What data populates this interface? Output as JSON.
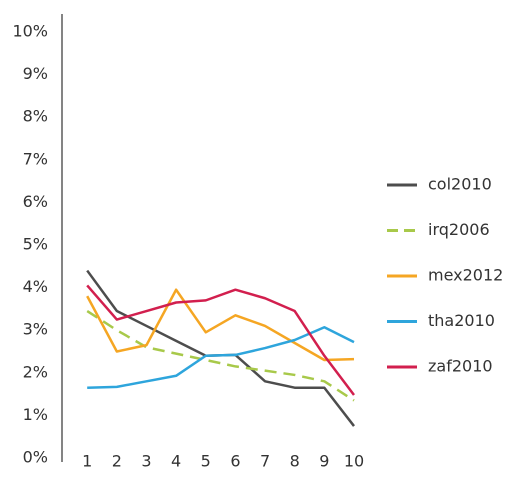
{
  "chart_data": {
    "type": "line",
    "x": [
      1,
      2,
      3,
      4,
      5,
      6,
      7,
      8,
      9,
      10
    ],
    "xlim": [
      0.15,
      10
    ],
    "xticks": [
      1,
      2,
      3,
      4,
      5,
      6,
      7,
      8,
      9,
      10
    ],
    "ylim": [
      0,
      10
    ],
    "yticks": [
      {
        "value": 0,
        "label": "0%"
      },
      {
        "value": 1,
        "label": "1%"
      },
      {
        "value": 2,
        "label": "2%"
      },
      {
        "value": 3,
        "label": "3%"
      },
      {
        "value": 4,
        "label": "4%"
      },
      {
        "value": 5,
        "label": "5%"
      },
      {
        "value": 6,
        "label": "6%"
      },
      {
        "value": 7,
        "label": "7%"
      },
      {
        "value": 8,
        "label": "8%"
      },
      {
        "value": 9,
        "label": "9%"
      },
      {
        "value": 10,
        "label": "10%"
      }
    ],
    "legend": "right",
    "series": [
      {
        "name": "col2010",
        "color": "#4d4d4d",
        "dash": "solid",
        "values": [
          4.4,
          3.45,
          3.1,
          2.75,
          2.4,
          2.42,
          1.8,
          1.65,
          1.65,
          0.75
        ]
      },
      {
        "name": "irq2006",
        "color": "#a8c94a",
        "dash": "dashed",
        "values": [
          3.45,
          3.0,
          2.6,
          2.45,
          2.3,
          2.15,
          2.05,
          1.95,
          1.8,
          1.35
        ]
      },
      {
        "name": "mex2012",
        "color": "#f5a623",
        "dash": "solid",
        "values": [
          3.8,
          2.5,
          2.65,
          3.95,
          2.95,
          3.35,
          3.1,
          2.7,
          2.3,
          2.32
        ]
      },
      {
        "name": "tha2010",
        "color": "#2ea5dc",
        "dash": "solid",
        "values": [
          1.65,
          1.67,
          1.8,
          1.93,
          2.4,
          2.42,
          2.58,
          2.77,
          3.07,
          2.72
        ]
      },
      {
        "name": "zaf2010",
        "color": "#d21f4e",
        "dash": "solid",
        "values": [
          4.05,
          3.25,
          3.45,
          3.65,
          3.7,
          3.95,
          3.75,
          3.45,
          2.4,
          1.48
        ]
      }
    ]
  }
}
